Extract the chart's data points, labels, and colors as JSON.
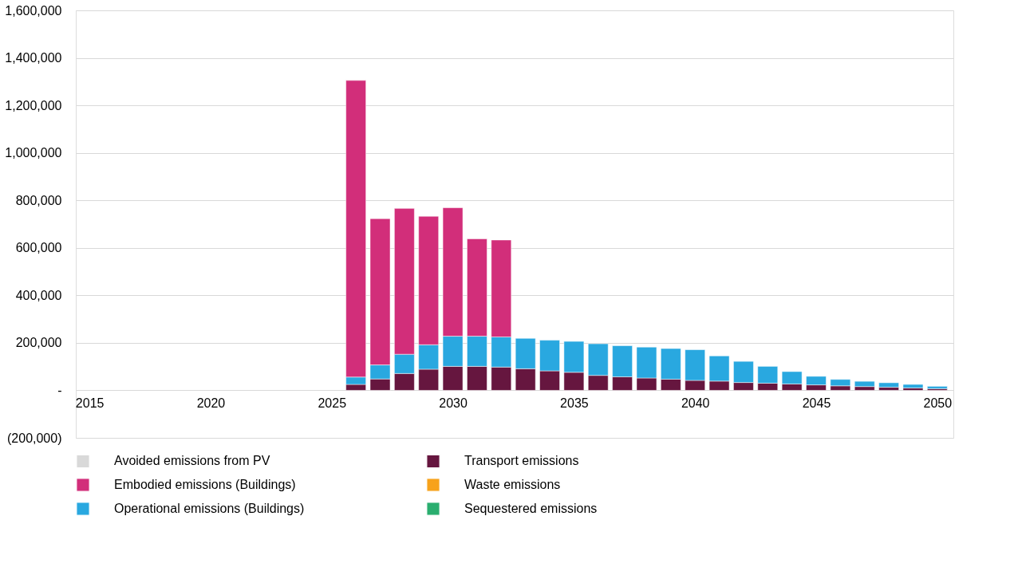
{
  "chart_data": {
    "type": "bar",
    "stacked": true,
    "x": [
      2026,
      2027,
      2028,
      2029,
      2030,
      2031,
      2032,
      2033,
      2034,
      2035,
      2036,
      2037,
      2038,
      2039,
      2040,
      2041,
      2042,
      2043,
      2044,
      2045,
      2046,
      2047,
      2048,
      2049,
      2050
    ],
    "series": [
      {
        "name": "Transport emissions",
        "color": "#66163f",
        "values": [
          25000,
          48000,
          71000,
          89000,
          101000,
          101000,
          98000,
          91000,
          82000,
          76000,
          63000,
          57000,
          52000,
          47000,
          42000,
          39000,
          33000,
          30000,
          27000,
          23000,
          19000,
          16000,
          13000,
          10000,
          7000
        ]
      },
      {
        "name": "Operational emissions (Buildings)",
        "color": "#29a8e0",
        "values": [
          31000,
          59000,
          81000,
          103000,
          127000,
          127000,
          127000,
          128000,
          129000,
          130000,
          133000,
          131000,
          130000,
          129000,
          129000,
          106000,
          89000,
          71000,
          52000,
          36000,
          27000,
          22000,
          19000,
          15000,
          10000
        ]
      },
      {
        "name": "Embodied emissions (Buildings)",
        "color": "#d22e7a",
        "values": [
          1249000,
          616000,
          614000,
          541000,
          541000,
          410000,
          408000,
          0,
          0,
          0,
          0,
          0,
          0,
          0,
          0,
          0,
          0,
          0,
          0,
          0,
          0,
          0,
          0,
          0,
          0
        ]
      },
      {
        "name": "Waste emissions",
        "color": "#f7a21b",
        "values": [
          0,
          0,
          0,
          0,
          0,
          0,
          0,
          0,
          0,
          0,
          0,
          0,
          0,
          0,
          0,
          0,
          0,
          0,
          0,
          0,
          0,
          0,
          0,
          0,
          0
        ]
      },
      {
        "name": "Sequestered emissions",
        "color": "#2aae6f",
        "values": [
          0,
          0,
          0,
          0,
          0,
          0,
          0,
          0,
          0,
          0,
          0,
          0,
          0,
          0,
          0,
          0,
          0,
          0,
          0,
          0,
          0,
          0,
          0,
          0,
          0
        ]
      },
      {
        "name": "Avoided emissions from PV",
        "color": "#d9d9d9",
        "values": [
          0,
          0,
          0,
          0,
          0,
          0,
          0,
          0,
          0,
          0,
          0,
          0,
          0,
          0,
          0,
          0,
          0,
          0,
          0,
          0,
          0,
          0,
          0,
          0,
          0
        ]
      }
    ],
    "xlim": [
      2014.6,
      2050.5
    ],
    "xticks": [
      2015,
      2020,
      2025,
      2030,
      2035,
      2040,
      2045,
      2050
    ],
    "ylim": [
      -200000,
      1600000
    ],
    "yticks": [
      {
        "value": -200000,
        "label": "(200,000)"
      },
      {
        "value": 0,
        "label": "-"
      },
      {
        "value": 200000,
        "label": "200,000"
      },
      {
        "value": 400000,
        "label": "400,000"
      },
      {
        "value": 600000,
        "label": "600,000"
      },
      {
        "value": 800000,
        "label": "800,000"
      },
      {
        "value": 1000000,
        "label": "1,000,000"
      },
      {
        "value": 1200000,
        "label": "1,200,000"
      },
      {
        "value": 1400000,
        "label": "1,400,000"
      },
      {
        "value": 1600000,
        "label": "1,600,000"
      }
    ],
    "grid": "y",
    "legend": "bottom"
  }
}
